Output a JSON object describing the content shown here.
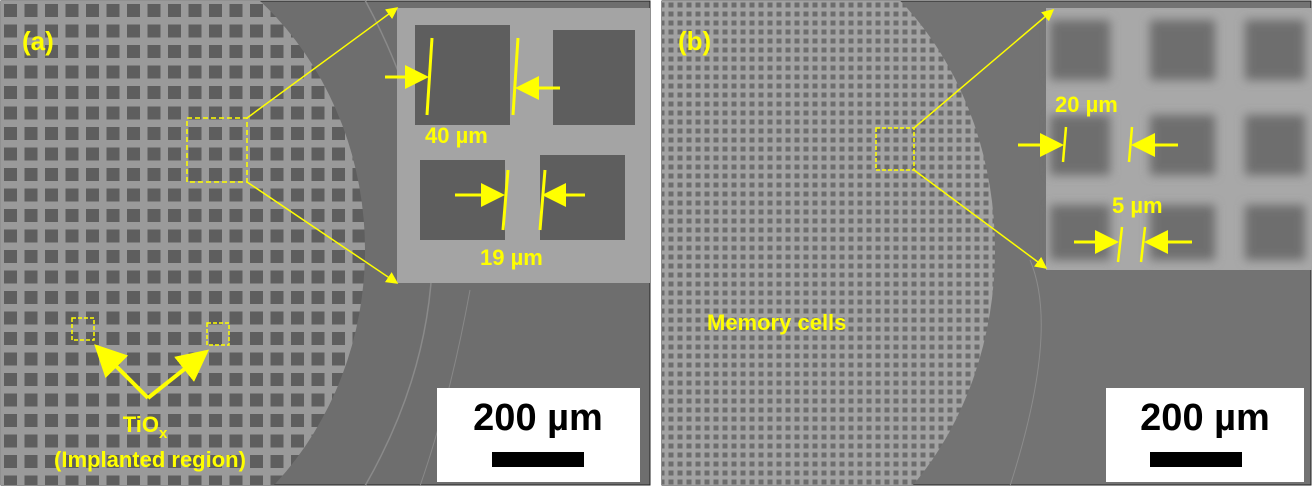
{
  "panels": [
    {
      "label": "(a)",
      "inset_labels": [
        "40 µm",
        "19 µm"
      ],
      "region_label": {
        "main": "TiO",
        "subscript": "x",
        "detail": "(Implanted region)"
      },
      "scale_bar": "200 µm"
    },
    {
      "label": "(b)",
      "inset_labels": [
        "20 µm",
        "5 µm"
      ],
      "region_label": "Memory cells",
      "scale_bar": "200 µm"
    }
  ]
}
